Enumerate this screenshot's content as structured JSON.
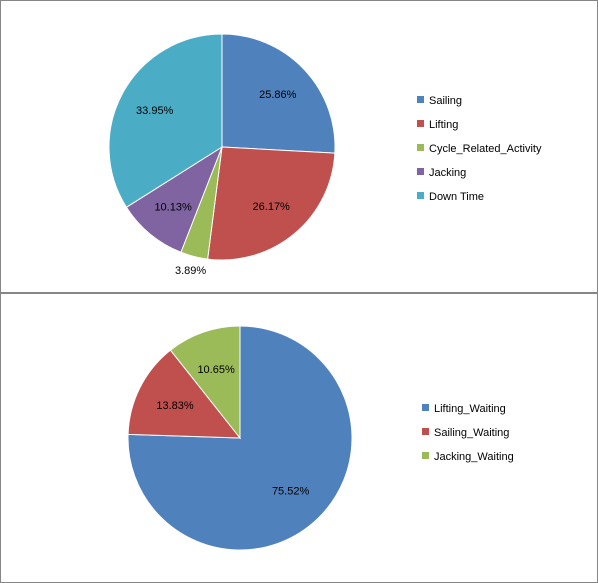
{
  "chart_data": [
    {
      "type": "pie",
      "title": "",
      "legend_position": "right",
      "categories": [
        "Sailing",
        "Lifting",
        "Cycle_Related_Activity",
        "Jacking",
        "Down Time"
      ],
      "values": [
        25.86,
        26.17,
        3.89,
        10.13,
        33.95
      ],
      "data_labels": [
        "25.86%",
        "26.17%",
        "3.89%",
        "10.13%",
        "33.95%"
      ],
      "colors": [
        "#4F81BD",
        "#C0504D",
        "#9BBB59",
        "#8064A2",
        "#4BACC6"
      ]
    },
    {
      "type": "pie",
      "title": "",
      "legend_position": "right",
      "categories": [
        "Lifting_Waiting",
        "Sailing_Waiting",
        "Jacking_Waiting"
      ],
      "values": [
        75.52,
        13.83,
        10.65
      ],
      "data_labels": [
        "75.52%",
        "13.83%",
        "10.65%"
      ],
      "colors": [
        "#4F81BD",
        "#C0504D",
        "#9BBB59"
      ]
    }
  ]
}
